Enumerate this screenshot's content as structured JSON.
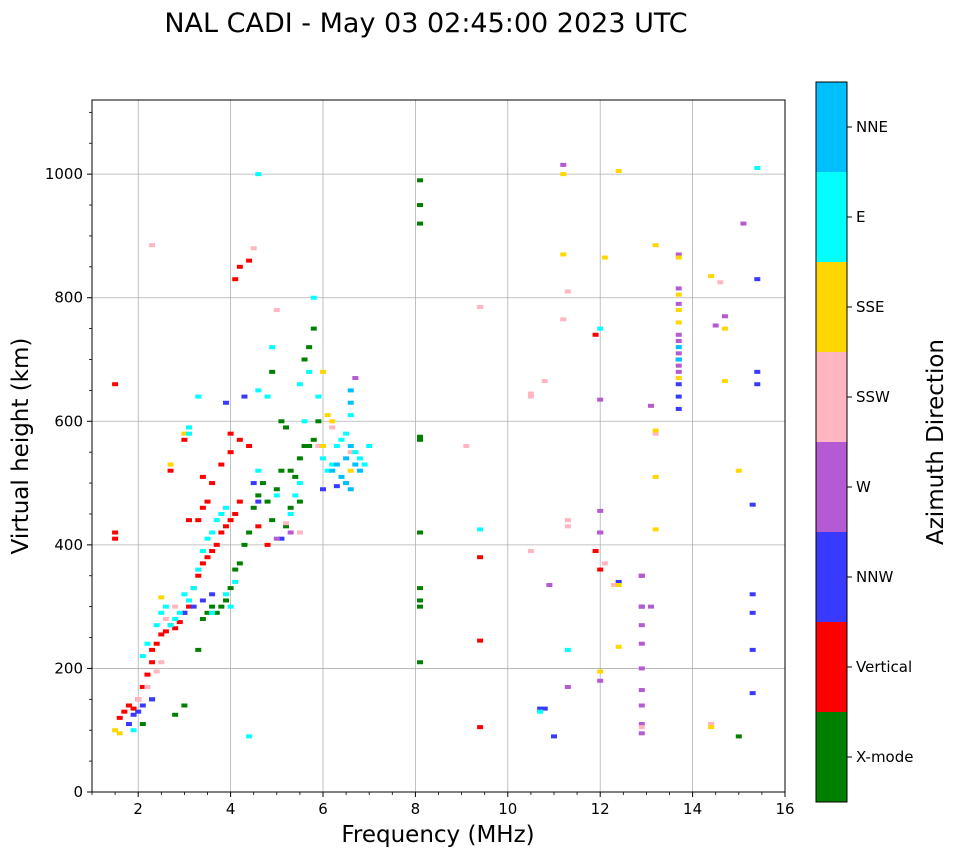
{
  "chart_data": {
    "type": "scatter",
    "title": "NAL CADI - May 03 02:45:00 2023 UTC",
    "xlabel": "Frequency (MHz)",
    "ylabel": "Virtual height (km)",
    "xlim": [
      1,
      16
    ],
    "ylim": [
      0,
      1120
    ],
    "xticks": [
      2,
      4,
      6,
      8,
      10,
      12,
      14,
      16
    ],
    "yticks": [
      0,
      200,
      400,
      600,
      800,
      1000
    ],
    "xtick_labels": [
      "2",
      "4",
      "6",
      "8",
      "10",
      "12",
      "14",
      "16"
    ],
    "ytick_labels": [
      "0",
      "200",
      "400",
      "600",
      "800",
      "1000"
    ],
    "grid": true,
    "colorbar": {
      "label": "Azimuth Direction",
      "categories": [
        "X-mode",
        "Vertical",
        "NNW",
        "W",
        "SSW",
        "SSE",
        "E",
        "NNE"
      ],
      "colors": [
        "#008000",
        "#ff0000",
        "#3a3aff",
        "#b45ad2",
        "#ffb6c1",
        "#ffd700",
        "#00ffff",
        "#00bfff"
      ]
    },
    "series": [
      {
        "name": "X-mode",
        "points": [
          [
            2.1,
            110
          ],
          [
            2.3,
            150
          ],
          [
            2.8,
            125
          ],
          [
            3.0,
            140
          ],
          [
            3.3,
            230
          ],
          [
            3.4,
            280
          ],
          [
            3.5,
            290
          ],
          [
            3.6,
            300
          ],
          [
            3.7,
            290
          ],
          [
            3.8,
            300
          ],
          [
            3.9,
            310
          ],
          [
            4.0,
            330
          ],
          [
            4.1,
            360
          ],
          [
            4.2,
            370
          ],
          [
            4.3,
            400
          ],
          [
            4.4,
            420
          ],
          [
            4.5,
            460
          ],
          [
            4.6,
            480
          ],
          [
            4.7,
            500
          ],
          [
            4.8,
            470
          ],
          [
            4.9,
            440
          ],
          [
            5.0,
            490
          ],
          [
            5.1,
            520
          ],
          [
            5.2,
            430
          ],
          [
            5.3,
            520
          ],
          [
            5.4,
            510
          ],
          [
            5.5,
            540
          ],
          [
            5.6,
            560
          ],
          [
            5.7,
            560
          ],
          [
            5.8,
            570
          ],
          [
            5.9,
            600
          ],
          [
            4.9,
            680
          ],
          [
            5.1,
            600
          ],
          [
            5.2,
            590
          ],
          [
            5.6,
            700
          ],
          [
            5.7,
            720
          ],
          [
            5.8,
            750
          ],
          [
            5.3,
            460
          ],
          [
            5.5,
            470
          ],
          [
            8.1,
            990
          ],
          [
            8.1,
            950
          ],
          [
            8.1,
            920
          ],
          [
            8.1,
            575
          ],
          [
            8.1,
            570
          ],
          [
            8.1,
            420
          ],
          [
            8.1,
            330
          ],
          [
            8.1,
            310
          ],
          [
            8.1,
            300
          ],
          [
            8.1,
            210
          ],
          [
            15.0,
            90
          ]
        ]
      },
      {
        "name": "Vertical",
        "points": [
          [
            1.6,
            120
          ],
          [
            1.7,
            130
          ],
          [
            1.8,
            140
          ],
          [
            1.9,
            135
          ],
          [
            2.0,
            150
          ],
          [
            2.1,
            170
          ],
          [
            2.2,
            190
          ],
          [
            2.3,
            210
          ],
          [
            2.4,
            240
          ],
          [
            2.5,
            255
          ],
          [
            2.6,
            260
          ],
          [
            2.7,
            270
          ],
          [
            2.8,
            265
          ],
          [
            2.9,
            275
          ],
          [
            3.0,
            290
          ],
          [
            3.1,
            300
          ],
          [
            3.2,
            330
          ],
          [
            3.3,
            350
          ],
          [
            3.4,
            370
          ],
          [
            3.5,
            380
          ],
          [
            3.6,
            390
          ],
          [
            3.7,
            400
          ],
          [
            3.8,
            420
          ],
          [
            3.9,
            430
          ],
          [
            4.0,
            440
          ],
          [
            4.1,
            450
          ],
          [
            4.2,
            470
          ],
          [
            3.3,
            440
          ],
          [
            3.4,
            460
          ],
          [
            3.6,
            500
          ],
          [
            3.8,
            530
          ],
          [
            4.0,
            550
          ],
          [
            4.2,
            570
          ],
          [
            4.4,
            560
          ],
          [
            4.6,
            430
          ],
          [
            4.8,
            400
          ],
          [
            1.5,
            420
          ],
          [
            1.5,
            410
          ],
          [
            1.5,
            660
          ],
          [
            2.3,
            230
          ],
          [
            3.0,
            570
          ],
          [
            3.4,
            510
          ],
          [
            4.0,
            580
          ],
          [
            4.2,
            850
          ],
          [
            4.1,
            830
          ],
          [
            4.4,
            860
          ],
          [
            2.7,
            520
          ],
          [
            3.1,
            440
          ],
          [
            3.5,
            470
          ],
          [
            9.4,
            380
          ],
          [
            9.4,
            245
          ],
          [
            9.4,
            105
          ],
          [
            11.9,
            390
          ],
          [
            12.0,
            360
          ],
          [
            12.0,
            420
          ],
          [
            11.9,
            740
          ],
          [
            12.9,
            350
          ]
        ]
      },
      {
        "name": "NNW",
        "points": [
          [
            1.8,
            110
          ],
          [
            1.9,
            125
          ],
          [
            2.0,
            130
          ],
          [
            2.1,
            140
          ],
          [
            2.3,
            150
          ],
          [
            3.0,
            290
          ],
          [
            3.2,
            300
          ],
          [
            3.4,
            310
          ],
          [
            3.6,
            320
          ],
          [
            3.9,
            630
          ],
          [
            4.3,
            640
          ],
          [
            4.5,
            500
          ],
          [
            4.6,
            470
          ],
          [
            5.1,
            410
          ],
          [
            6.0,
            490
          ],
          [
            6.3,
            495
          ],
          [
            10.7,
            135
          ],
          [
            10.8,
            135
          ],
          [
            11.0,
            90
          ],
          [
            12.4,
            340
          ],
          [
            12.9,
            300
          ],
          [
            13.7,
            640
          ],
          [
            13.7,
            620
          ],
          [
            13.7,
            700
          ],
          [
            13.7,
            660
          ],
          [
            15.3,
            465
          ],
          [
            15.3,
            320
          ],
          [
            15.3,
            290
          ],
          [
            15.3,
            230
          ],
          [
            15.3,
            160
          ],
          [
            15.4,
            830
          ],
          [
            15.4,
            680
          ],
          [
            15.4,
            660
          ]
        ]
      },
      {
        "name": "W",
        "points": [
          [
            5.0,
            410
          ],
          [
            5.3,
            420
          ],
          [
            6.7,
            670
          ],
          [
            10.9,
            335
          ],
          [
            11.2,
            1015
          ],
          [
            11.3,
            170
          ],
          [
            12.0,
            455
          ],
          [
            12.0,
            420
          ],
          [
            12.0,
            635
          ],
          [
            12.0,
            180
          ],
          [
            12.9,
            350
          ],
          [
            12.9,
            300
          ],
          [
            12.9,
            270
          ],
          [
            12.9,
            240
          ],
          [
            12.9,
            200
          ],
          [
            12.9,
            165
          ],
          [
            12.9,
            140
          ],
          [
            12.9,
            110
          ],
          [
            12.9,
            95
          ],
          [
            13.1,
            625
          ],
          [
            13.1,
            300
          ],
          [
            13.7,
            870
          ],
          [
            13.7,
            815
          ],
          [
            13.7,
            790
          ],
          [
            13.7,
            740
          ],
          [
            13.7,
            730
          ],
          [
            13.7,
            710
          ],
          [
            13.7,
            690
          ],
          [
            13.7,
            680
          ],
          [
            14.4,
            110
          ],
          [
            14.5,
            755
          ],
          [
            14.7,
            770
          ],
          [
            15.1,
            920
          ]
        ]
      },
      {
        "name": "SSW",
        "points": [
          [
            2.0,
            150
          ],
          [
            2.2,
            170
          ],
          [
            2.4,
            195
          ],
          [
            2.5,
            210
          ],
          [
            2.6,
            280
          ],
          [
            2.3,
            885
          ],
          [
            2.8,
            300
          ],
          [
            4.5,
            880
          ],
          [
            5.2,
            435
          ],
          [
            5.5,
            420
          ],
          [
            5.0,
            780
          ],
          [
            5.9,
            560
          ],
          [
            6.2,
            590
          ],
          [
            6.6,
            550
          ],
          [
            9.4,
            785
          ],
          [
            9.1,
            560
          ],
          [
            10.5,
            645
          ],
          [
            10.5,
            640
          ],
          [
            10.8,
            665
          ],
          [
            10.5,
            390
          ],
          [
            11.2,
            765
          ],
          [
            11.3,
            810
          ],
          [
            11.3,
            440
          ],
          [
            11.3,
            430
          ],
          [
            12.1,
            370
          ],
          [
            12.3,
            335
          ],
          [
            12.9,
            105
          ],
          [
            13.2,
            580
          ],
          [
            14.4,
            110
          ],
          [
            14.6,
            825
          ]
        ]
      },
      {
        "name": "SSE",
        "points": [
          [
            1.5,
            100
          ],
          [
            1.6,
            95
          ],
          [
            2.5,
            315
          ],
          [
            2.7,
            530
          ],
          [
            3.0,
            580
          ],
          [
            6.0,
            680
          ],
          [
            6.1,
            610
          ],
          [
            6.2,
            600
          ],
          [
            6.0,
            560
          ],
          [
            6.5,
            500
          ],
          [
            6.6,
            520
          ],
          [
            11.2,
            1000
          ],
          [
            11.2,
            870
          ],
          [
            12.1,
            865
          ],
          [
            12.4,
            1005
          ],
          [
            12.4,
            235
          ],
          [
            12.4,
            335
          ],
          [
            12.0,
            195
          ],
          [
            13.2,
            885
          ],
          [
            13.2,
            585
          ],
          [
            13.2,
            510
          ],
          [
            13.2,
            425
          ],
          [
            13.7,
            865
          ],
          [
            13.7,
            805
          ],
          [
            13.7,
            780
          ],
          [
            13.7,
            760
          ],
          [
            13.7,
            670
          ],
          [
            14.4,
            835
          ],
          [
            14.4,
            105
          ],
          [
            14.7,
            750
          ],
          [
            14.7,
            665
          ],
          [
            15.0,
            520
          ]
        ]
      },
      {
        "name": "E",
        "points": [
          [
            1.9,
            100
          ],
          [
            2.1,
            220
          ],
          [
            2.2,
            240
          ],
          [
            2.4,
            270
          ],
          [
            2.5,
            290
          ],
          [
            2.6,
            300
          ],
          [
            2.7,
            270
          ],
          [
            2.8,
            280
          ],
          [
            2.9,
            290
          ],
          [
            3.0,
            320
          ],
          [
            3.1,
            310
          ],
          [
            3.2,
            330
          ],
          [
            3.3,
            360
          ],
          [
            3.4,
            390
          ],
          [
            3.5,
            410
          ],
          [
            3.6,
            420
          ],
          [
            3.7,
            440
          ],
          [
            3.8,
            450
          ],
          [
            3.9,
            460
          ],
          [
            4.1,
            340
          ],
          [
            3.9,
            320
          ],
          [
            4.0,
            300
          ],
          [
            3.6,
            290
          ],
          [
            4.4,
            90
          ],
          [
            4.6,
            1000
          ],
          [
            4.6,
            650
          ],
          [
            4.6,
            520
          ],
          [
            4.8,
            640
          ],
          [
            4.9,
            720
          ],
          [
            5.0,
            480
          ],
          [
            5.3,
            450
          ],
          [
            5.4,
            480
          ],
          [
            5.5,
            500
          ],
          [
            5.6,
            600
          ],
          [
            5.5,
            660
          ],
          [
            5.7,
            680
          ],
          [
            5.8,
            800
          ],
          [
            5.9,
            640
          ],
          [
            6.0,
            540
          ],
          [
            6.1,
            520
          ],
          [
            6.2,
            530
          ],
          [
            6.3,
            560
          ],
          [
            6.4,
            570
          ],
          [
            6.5,
            580
          ],
          [
            6.6,
            610
          ],
          [
            6.7,
            550
          ],
          [
            6.8,
            540
          ],
          [
            6.9,
            530
          ],
          [
            7.0,
            560
          ],
          [
            3.1,
            590
          ],
          [
            3.1,
            580
          ],
          [
            3.3,
            640
          ],
          [
            9.4,
            425
          ],
          [
            10.7,
            130
          ],
          [
            11.3,
            230
          ],
          [
            12.0,
            750
          ],
          [
            15.4,
            1010
          ]
        ]
      },
      {
        "name": "NNE",
        "points": [
          [
            6.2,
            520
          ],
          [
            6.3,
            530
          ],
          [
            6.4,
            510
          ],
          [
            6.5,
            540
          ],
          [
            6.6,
            560
          ],
          [
            6.7,
            530
          ],
          [
            6.5,
            500
          ],
          [
            6.6,
            490
          ],
          [
            6.8,
            520
          ],
          [
            6.6,
            650
          ],
          [
            6.6,
            630
          ],
          [
            13.7,
            720
          ],
          [
            13.7,
            700
          ]
        ]
      }
    ]
  }
}
